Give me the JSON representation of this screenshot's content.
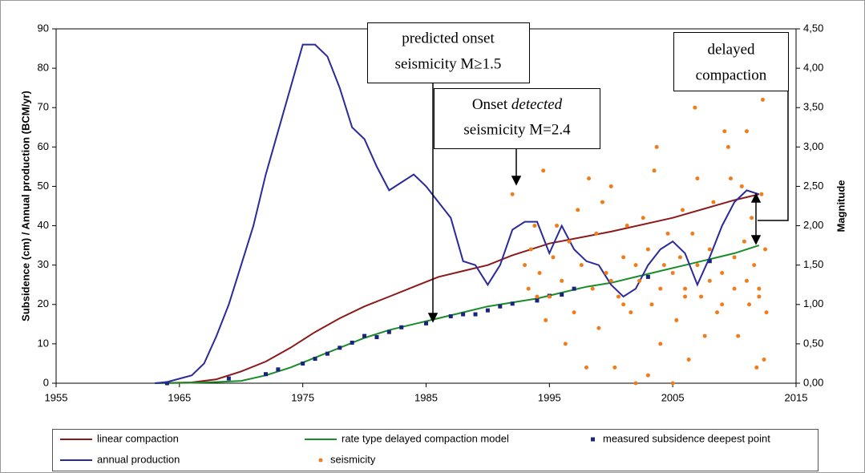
{
  "chart_data": {
    "type": "line",
    "y_label": "Subsidence (cm) / Annual production (BCM/yr)",
    "y2_label": "Magnitude",
    "xlim": [
      1955,
      2015
    ],
    "xticks": [
      1955,
      1965,
      1975,
      1985,
      1995,
      2005,
      2015
    ],
    "ylim": [
      0,
      90
    ],
    "yticks": [
      0,
      10,
      20,
      30,
      40,
      50,
      60,
      70,
      80,
      90
    ],
    "y2lim": [
      0,
      4.5
    ],
    "y2ticks": [
      {
        "value": 0,
        "label": "0,00"
      },
      {
        "value": 0.5,
        "label": "0,50"
      },
      {
        "value": 1,
        "label": "1,00"
      },
      {
        "value": 1.5,
        "label": "1,50"
      },
      {
        "value": 2,
        "label": "2,00"
      },
      {
        "value": 2.5,
        "label": "2,50"
      },
      {
        "value": 3,
        "label": "3,00"
      },
      {
        "value": 3.5,
        "label": "3,50"
      },
      {
        "value": 4,
        "label": "4,00"
      },
      {
        "value": 4.5,
        "label": "4,50"
      }
    ],
    "annotations": [
      {
        "lines": [
          "predicted onset",
          "seismicity M≥1.5"
        ]
      },
      {
        "lines": [
          "Onset",
          "detected",
          "seismicity M=2.4"
        ]
      },
      {
        "lines": [
          "delayed",
          "compaction"
        ]
      }
    ],
    "series": [
      {
        "name": "linear compaction",
        "color": "#8b1a1a",
        "mark": "line",
        "x": [
          1963,
          1966,
          1968,
          1970,
          1972,
          1974,
          1976,
          1978,
          1980,
          1982,
          1984,
          1986,
          1988,
          1990,
          1992,
          1995,
          2000,
          2005,
          2010,
          2012
        ],
        "values": [
          0,
          0.2,
          1,
          3,
          5.5,
          9,
          13,
          16.5,
          19.5,
          22,
          24.5,
          27,
          28.5,
          30,
          32.5,
          35.5,
          38.5,
          42,
          46.5,
          48
        ]
      },
      {
        "name": "rate type delayed compaction model",
        "color": "#1a8c2a",
        "mark": "line",
        "x": [
          1963,
          1966,
          1968,
          1970,
          1972,
          1974,
          1976,
          1978,
          1980,
          1982,
          1984,
          1986,
          1988,
          1990,
          1992,
          1994,
          1996,
          1998,
          2000,
          2002,
          2004,
          2006,
          2008,
          2010,
          2012
        ],
        "values": [
          0,
          0.1,
          0.3,
          0.6,
          2,
          4,
          6.5,
          9,
          11.5,
          13.5,
          15,
          16.5,
          18,
          19.5,
          20.5,
          21.5,
          23,
          24.5,
          25.5,
          27,
          28.5,
          30,
          31.5,
          33,
          35
        ]
      },
      {
        "name": "measured subsidence deepest point",
        "color": "#1a237e",
        "mark": "square",
        "x": [
          1964,
          1969,
          1972,
          1973,
          1975,
          1976,
          1977,
          1978,
          1979,
          1980,
          1981,
          1982,
          1983,
          1985,
          1987,
          1988,
          1989,
          1990,
          1991,
          1992,
          1994,
          1995,
          1996,
          1997,
          2003,
          2008
        ],
        "values": [
          0,
          1.2,
          2.3,
          3.5,
          5,
          6.2,
          7.5,
          9,
          10.3,
          12,
          11.7,
          13,
          14.2,
          15.2,
          17,
          17.5,
          17.5,
          18.5,
          19.5,
          20.2,
          21,
          22.2,
          22.5,
          24,
          27,
          31
        ]
      },
      {
        "name": "annual production",
        "color": "#2a2a9a",
        "mark": "line",
        "x": [
          1963,
          1964,
          1966,
          1967,
          1968,
          1969,
          1970,
          1971,
          1972,
          1973,
          1974,
          1975,
          1976,
          1977,
          1978,
          1979,
          1980,
          1981,
          1982,
          1983,
          1984,
          1985,
          1986,
          1987,
          1988,
          1989,
          1990,
          1991,
          1992,
          1993,
          1994,
          1995,
          1996,
          1997,
          1998,
          1999,
          2000,
          2001,
          2002,
          2003,
          2004,
          2005,
          2006,
          2007,
          2008,
          2009,
          2010,
          2011,
          2012
        ],
        "values": [
          0,
          0.3,
          2,
          5,
          12,
          20,
          30,
          40,
          53,
          64,
          75,
          86,
          86,
          83,
          75,
          65,
          62,
          55,
          49,
          51,
          53,
          50,
          46,
          42,
          31,
          30,
          25,
          30,
          39,
          41,
          41,
          33,
          40,
          34,
          31,
          30,
          25,
          22,
          24,
          30,
          34,
          36,
          33,
          25,
          32,
          40,
          46,
          49,
          48
        ]
      },
      {
        "name": "seismicity",
        "color": "#f07c1a",
        "mark": "dot",
        "axis": "y2",
        "x": [
          1992,
          1993,
          1993.3,
          1993.5,
          1993.8,
          1994,
          1994.2,
          1994.5,
          1994.7,
          1995,
          1995.3,
          1995.6,
          1996,
          1996.3,
          1996.6,
          1997,
          1997.3,
          1997.6,
          1998,
          1998.2,
          1998.5,
          1998.8,
          1999,
          1999.3,
          1999.6,
          2000,
          2000.3,
          2000.6,
          2001,
          2001.3,
          2001.6,
          2002,
          2002.3,
          2002.6,
          2003,
          2003.3,
          2003.5,
          2003.7,
          2004,
          2004.3,
          2004.6,
          2005,
          2005.3,
          2005.6,
          2005.8,
          2006,
          2006.3,
          2006.6,
          2006.8,
          2007,
          2007.3,
          2007.6,
          2008,
          2008.3,
          2008.6,
          2009,
          2009.2,
          2009.5,
          2009.7,
          2010,
          2010.3,
          2010.6,
          2010.8,
          2011,
          2011.2,
          2011.4,
          2011.6,
          2011.8,
          2012,
          2012.2,
          2012.3,
          2012.4,
          2012.5,
          2012.6,
          2004,
          2005,
          2006,
          2007,
          2008,
          2009,
          2010,
          2011,
          2012,
          2002,
          2003,
          2000,
          2001
        ],
        "values": [
          2.4,
          1.5,
          1.2,
          1.7,
          2.0,
          1.1,
          1.4,
          2.7,
          0.8,
          1.1,
          1.6,
          2.0,
          1.3,
          0.5,
          1.8,
          0.9,
          2.2,
          1.5,
          0.2,
          2.6,
          1.2,
          1.9,
          0.7,
          2.3,
          1.4,
          2.5,
          0.2,
          1.1,
          1.6,
          2.0,
          0.9,
          0.0,
          1.3,
          2.1,
          0.1,
          1.0,
          2.7,
          3.0,
          0.5,
          1.5,
          1.9,
          0.0,
          0.8,
          1.6,
          2.2,
          1.2,
          0.3,
          1.9,
          3.5,
          2.6,
          1.1,
          0.6,
          1.7,
          2.3,
          0.9,
          1.4,
          3.2,
          3.0,
          2.6,
          1.2,
          0.6,
          2.5,
          1.8,
          3.2,
          1.0,
          2.1,
          1.5,
          0.2,
          1.2,
          2.4,
          3.6,
          0.3,
          1.7,
          0.9,
          1.2,
          1.4,
          1.1,
          1.5,
          1.3,
          1.0,
          1.6,
          1.3,
          1.1,
          1.5,
          1.7,
          1.3,
          1.0
        ]
      }
    ]
  }
}
